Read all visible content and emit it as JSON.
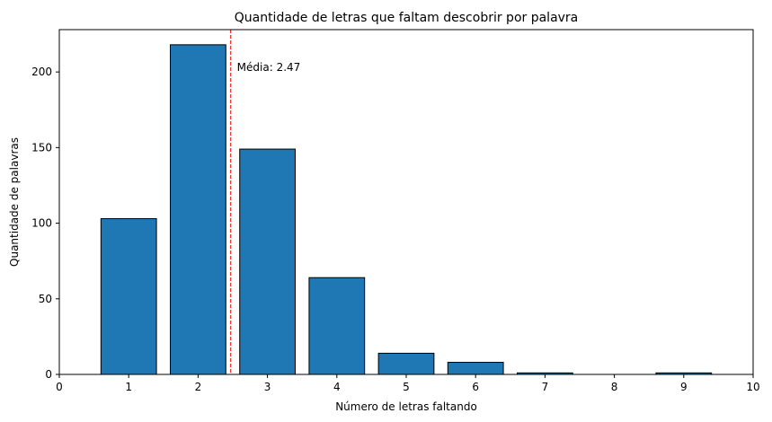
{
  "chart_data": {
    "type": "bar",
    "title": "Quantidade de letras que faltam descobrir por palavra",
    "xlabel": "Número de letras faltando",
    "ylabel": "Quantidade de palavras",
    "x": [
      1,
      2,
      3,
      4,
      5,
      6,
      7,
      9
    ],
    "values": [
      103,
      218,
      149,
      64,
      14,
      8,
      1,
      1
    ],
    "xlim": [
      0,
      10
    ],
    "ylim": [
      0,
      228
    ],
    "xticks": [
      0,
      1,
      2,
      3,
      4,
      5,
      6,
      7,
      8,
      9,
      10
    ],
    "yticks": [
      0,
      50,
      100,
      150,
      200
    ],
    "bar_width": 0.8,
    "bar_color": "#1f77b4",
    "bar_edge_color": "#000000",
    "grid": false,
    "mean_line": {
      "x": 2.47,
      "label": "Média: 2.47",
      "color": "#ff0000",
      "style": "dashed"
    }
  }
}
